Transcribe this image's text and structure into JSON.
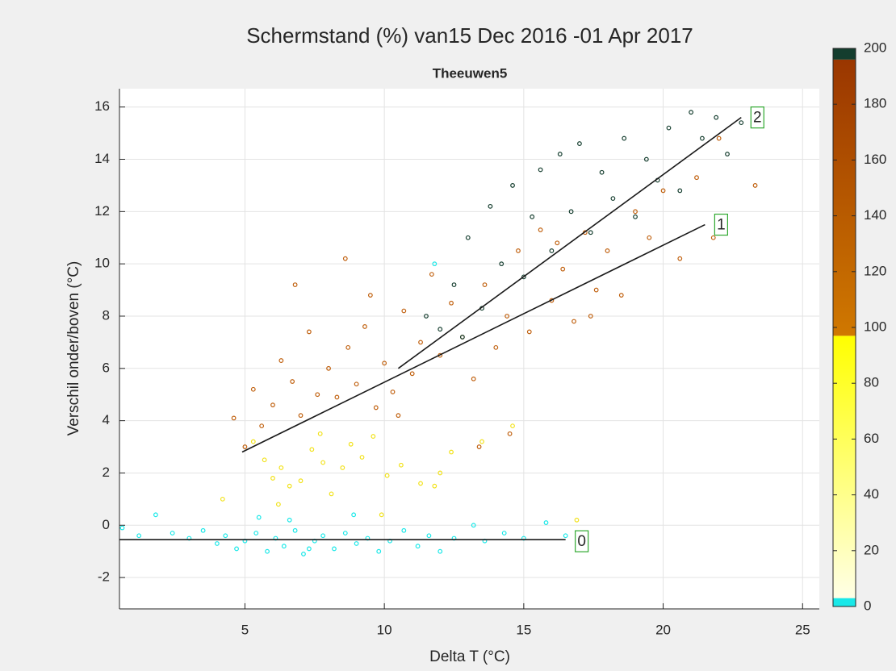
{
  "chart_data": {
    "type": "scatter",
    "title": "Schermstand (%) van15 Dec 2016 -01 Apr 2017",
    "subtitle": "Theeuwen5",
    "xlabel": "Delta T (°C)",
    "ylabel": "Verschil onder/boven (°C)",
    "xlim": [
      0.5,
      25.6
    ],
    "xticks": [
      5,
      10,
      15,
      20,
      25
    ],
    "ylim": [
      -3.2,
      16.7
    ],
    "yticks": [
      -2,
      0,
      2,
      4,
      6,
      8,
      10,
      12,
      14,
      16
    ],
    "grid": true,
    "series": [
      {
        "color": "#19e8e8",
        "x": [
          0.6,
          1.2,
          1.8,
          2.4,
          3.0,
          3.5,
          4.0,
          4.3,
          4.7,
          5.0,
          5.4,
          5.8,
          6.1,
          6.4,
          6.8,
          7.1,
          7.5,
          7.8,
          8.2,
          8.6,
          9.0,
          9.4,
          9.8,
          10.2,
          10.7,
          11.2,
          11.6,
          12.0,
          12.5,
          13.2,
          13.6,
          14.3,
          15.0,
          15.8,
          16.5,
          5.5,
          6.6,
          7.3,
          8.9,
          11.8
        ],
        "values": [
          -0.1,
          -0.4,
          0.4,
          -0.3,
          -0.5,
          -0.2,
          -0.7,
          -0.4,
          -0.9,
          -0.6,
          -0.3,
          -1.0,
          -0.5,
          -0.8,
          -0.2,
          -1.1,
          -0.6,
          -0.4,
          -0.9,
          -0.3,
          -0.7,
          -0.5,
          -1.0,
          -0.6,
          -0.2,
          -0.8,
          -0.4,
          -1.0,
          -0.5,
          0.0,
          -0.6,
          -0.3,
          -0.5,
          0.1,
          -0.4,
          0.3,
          0.2,
          -0.9,
          0.4,
          10.0
        ]
      },
      {
        "color": "#f2e21a",
        "x": [
          4.2,
          5.3,
          5.7,
          6.0,
          6.3,
          6.6,
          7.0,
          7.4,
          7.8,
          8.1,
          8.5,
          8.8,
          9.2,
          9.6,
          10.1,
          10.6,
          11.3,
          11.8,
          12.0,
          12.4,
          13.5,
          14.6,
          16.9,
          6.2,
          7.7,
          9.9
        ],
        "values": [
          1.0,
          3.2,
          2.5,
          1.8,
          2.2,
          1.5,
          1.7,
          2.9,
          2.4,
          1.2,
          2.2,
          3.1,
          2.6,
          3.4,
          1.9,
          2.3,
          1.6,
          1.5,
          2.0,
          2.8,
          3.2,
          3.8,
          0.2,
          0.8,
          3.5,
          0.4
        ]
      },
      {
        "color": "#c0600e",
        "x": [
          4.6,
          5.0,
          5.3,
          5.6,
          6.0,
          6.3,
          6.7,
          7.0,
          7.3,
          7.6,
          8.0,
          8.3,
          8.7,
          9.0,
          9.3,
          9.7,
          10.0,
          10.3,
          10.7,
          11.0,
          11.3,
          11.7,
          12.0,
          12.4,
          12.8,
          13.2,
          13.6,
          14.0,
          14.4,
          14.8,
          15.2,
          15.6,
          16.0,
          16.4,
          16.8,
          17.2,
          17.6,
          18.0,
          18.5,
          19.0,
          19.5,
          20.0,
          20.6,
          21.2,
          21.8,
          22.0,
          23.3,
          6.8,
          8.6,
          9.5,
          10.5,
          13.4,
          14.5,
          16.2,
          17.4
        ],
        "values": [
          4.1,
          3.0,
          5.2,
          3.8,
          4.6,
          6.3,
          5.5,
          4.2,
          7.4,
          5.0,
          6.0,
          4.9,
          6.8,
          5.4,
          7.6,
          4.5,
          6.2,
          5.1,
          8.2,
          5.8,
          7.0,
          9.6,
          6.5,
          8.5,
          7.2,
          5.6,
          9.2,
          6.8,
          8.0,
          10.5,
          7.4,
          11.3,
          8.6,
          9.8,
          7.8,
          11.2,
          9.0,
          10.5,
          8.8,
          12.0,
          11.0,
          12.8,
          10.2,
          13.3,
          11.0,
          14.8,
          13.0,
          9.2,
          10.2,
          8.8,
          4.2,
          3.0,
          3.5,
          10.8,
          8.0
        ]
      },
      {
        "color": "#143d2e",
        "x": [
          11.5,
          12.0,
          12.5,
          12.8,
          13.0,
          13.5,
          13.8,
          14.2,
          14.6,
          15.0,
          15.3,
          15.6,
          16.0,
          16.3,
          16.7,
          17.0,
          17.4,
          17.8,
          18.2,
          18.6,
          19.0,
          19.4,
          19.8,
          20.2,
          20.6,
          21.0,
          21.4,
          21.9,
          22.3,
          22.8
        ],
        "values": [
          8.0,
          7.5,
          9.2,
          7.2,
          11.0,
          8.3,
          12.2,
          10.0,
          13.0,
          9.5,
          11.8,
          13.6,
          10.5,
          14.2,
          12.0,
          14.6,
          11.2,
          13.5,
          12.5,
          14.8,
          11.8,
          14.0,
          13.2,
          15.2,
          12.8,
          15.8,
          14.8,
          15.6,
          14.2,
          15.4
        ]
      }
    ],
    "fits": [
      {
        "label": "0",
        "color": "#1a1a1a",
        "x": [
          0.5,
          16.5
        ],
        "values": [
          -0.55,
          -0.55
        ]
      },
      {
        "label": "1",
        "color": "#1a1a1a",
        "x": [
          4.9,
          21.5
        ],
        "values": [
          2.8,
          11.5
        ]
      },
      {
        "label": "2",
        "color": "#1a1a1a",
        "x": [
          10.5,
          22.8
        ],
        "values": [
          6.0,
          15.6
        ]
      }
    ],
    "colorbar": {
      "lim": [
        0,
        200
      ],
      "ticks": [
        0,
        20,
        40,
        60,
        80,
        100,
        120,
        140,
        160,
        180,
        200
      ],
      "segments": [
        {
          "from": 0,
          "to": 3,
          "colors": [
            "#19e8e8",
            "#19e8e8"
          ]
        },
        {
          "from": 3,
          "to": 97,
          "colors": [
            "#ffffe6",
            "#ffff00"
          ]
        },
        {
          "from": 97,
          "to": 196,
          "colors": [
            "#d07800",
            "#9a3600"
          ]
        },
        {
          "from": 196,
          "to": 200,
          "colors": [
            "#143d2e",
            "#143d2e"
          ]
        }
      ]
    }
  }
}
